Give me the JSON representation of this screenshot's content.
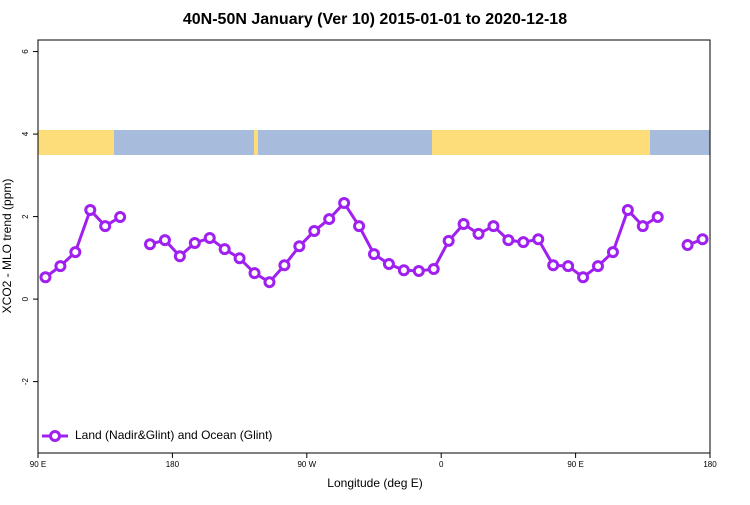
{
  "chart_data": {
    "type": "line",
    "title": "40N-50N January (Ver 10)   2015-01-01 to 2020-12-18",
    "x_label": "Longitude (deg E)",
    "y_label": "XCO2 - MLO trend (ppm)",
    "x": [
      95,
      105,
      115,
      125,
      135,
      145,
      155,
      165,
      175,
      185,
      195,
      205,
      215,
      225,
      235,
      245,
      255,
      265,
      275,
      285,
      295,
      305,
      315,
      325,
      335,
      345,
      355,
      365,
      375,
      385,
      395,
      405,
      415,
      425,
      435,
      445,
      455,
      465,
      475,
      485,
      495,
      505,
      515,
      525,
      535
    ],
    "series": [
      {
        "name": "Land (Nadir&Glint) and Ocean (Glint)",
        "color": "#a020f0",
        "values": [
          0.53,
          0.8,
          1.14,
          2.16,
          1.77,
          1.99,
          null,
          1.33,
          1.43,
          1.04,
          1.36,
          1.48,
          1.21,
          0.99,
          0.63,
          0.41,
          0.82,
          1.28,
          1.65,
          1.94,
          2.33,
          1.77,
          1.09,
          0.85,
          0.7,
          0.68,
          0.73,
          1.41,
          1.82,
          1.58,
          1.77,
          1.43,
          1.38,
          1.45,
          0.82,
          0.8,
          0.53,
          0.8,
          1.14,
          2.16,
          1.77,
          1.99,
          null,
          1.31,
          1.45
        ]
      }
    ],
    "xlim": [
      90,
      540
    ],
    "xticks": [
      {
        "value": 90,
        "label": "90 E"
      },
      180,
      {
        "value": 270,
        "label": "90 W"
      },
      {
        "value": 360,
        "label": "0"
      },
      {
        "value": 450,
        "label": "90 E"
      },
      {
        "value": 540,
        "label": "180"
      }
    ],
    "ylim": [
      -3.73,
      6.28
    ],
    "yticks": [
      -2,
      0,
      2,
      4,
      6
    ],
    "legend": "bottom-left"
  }
}
